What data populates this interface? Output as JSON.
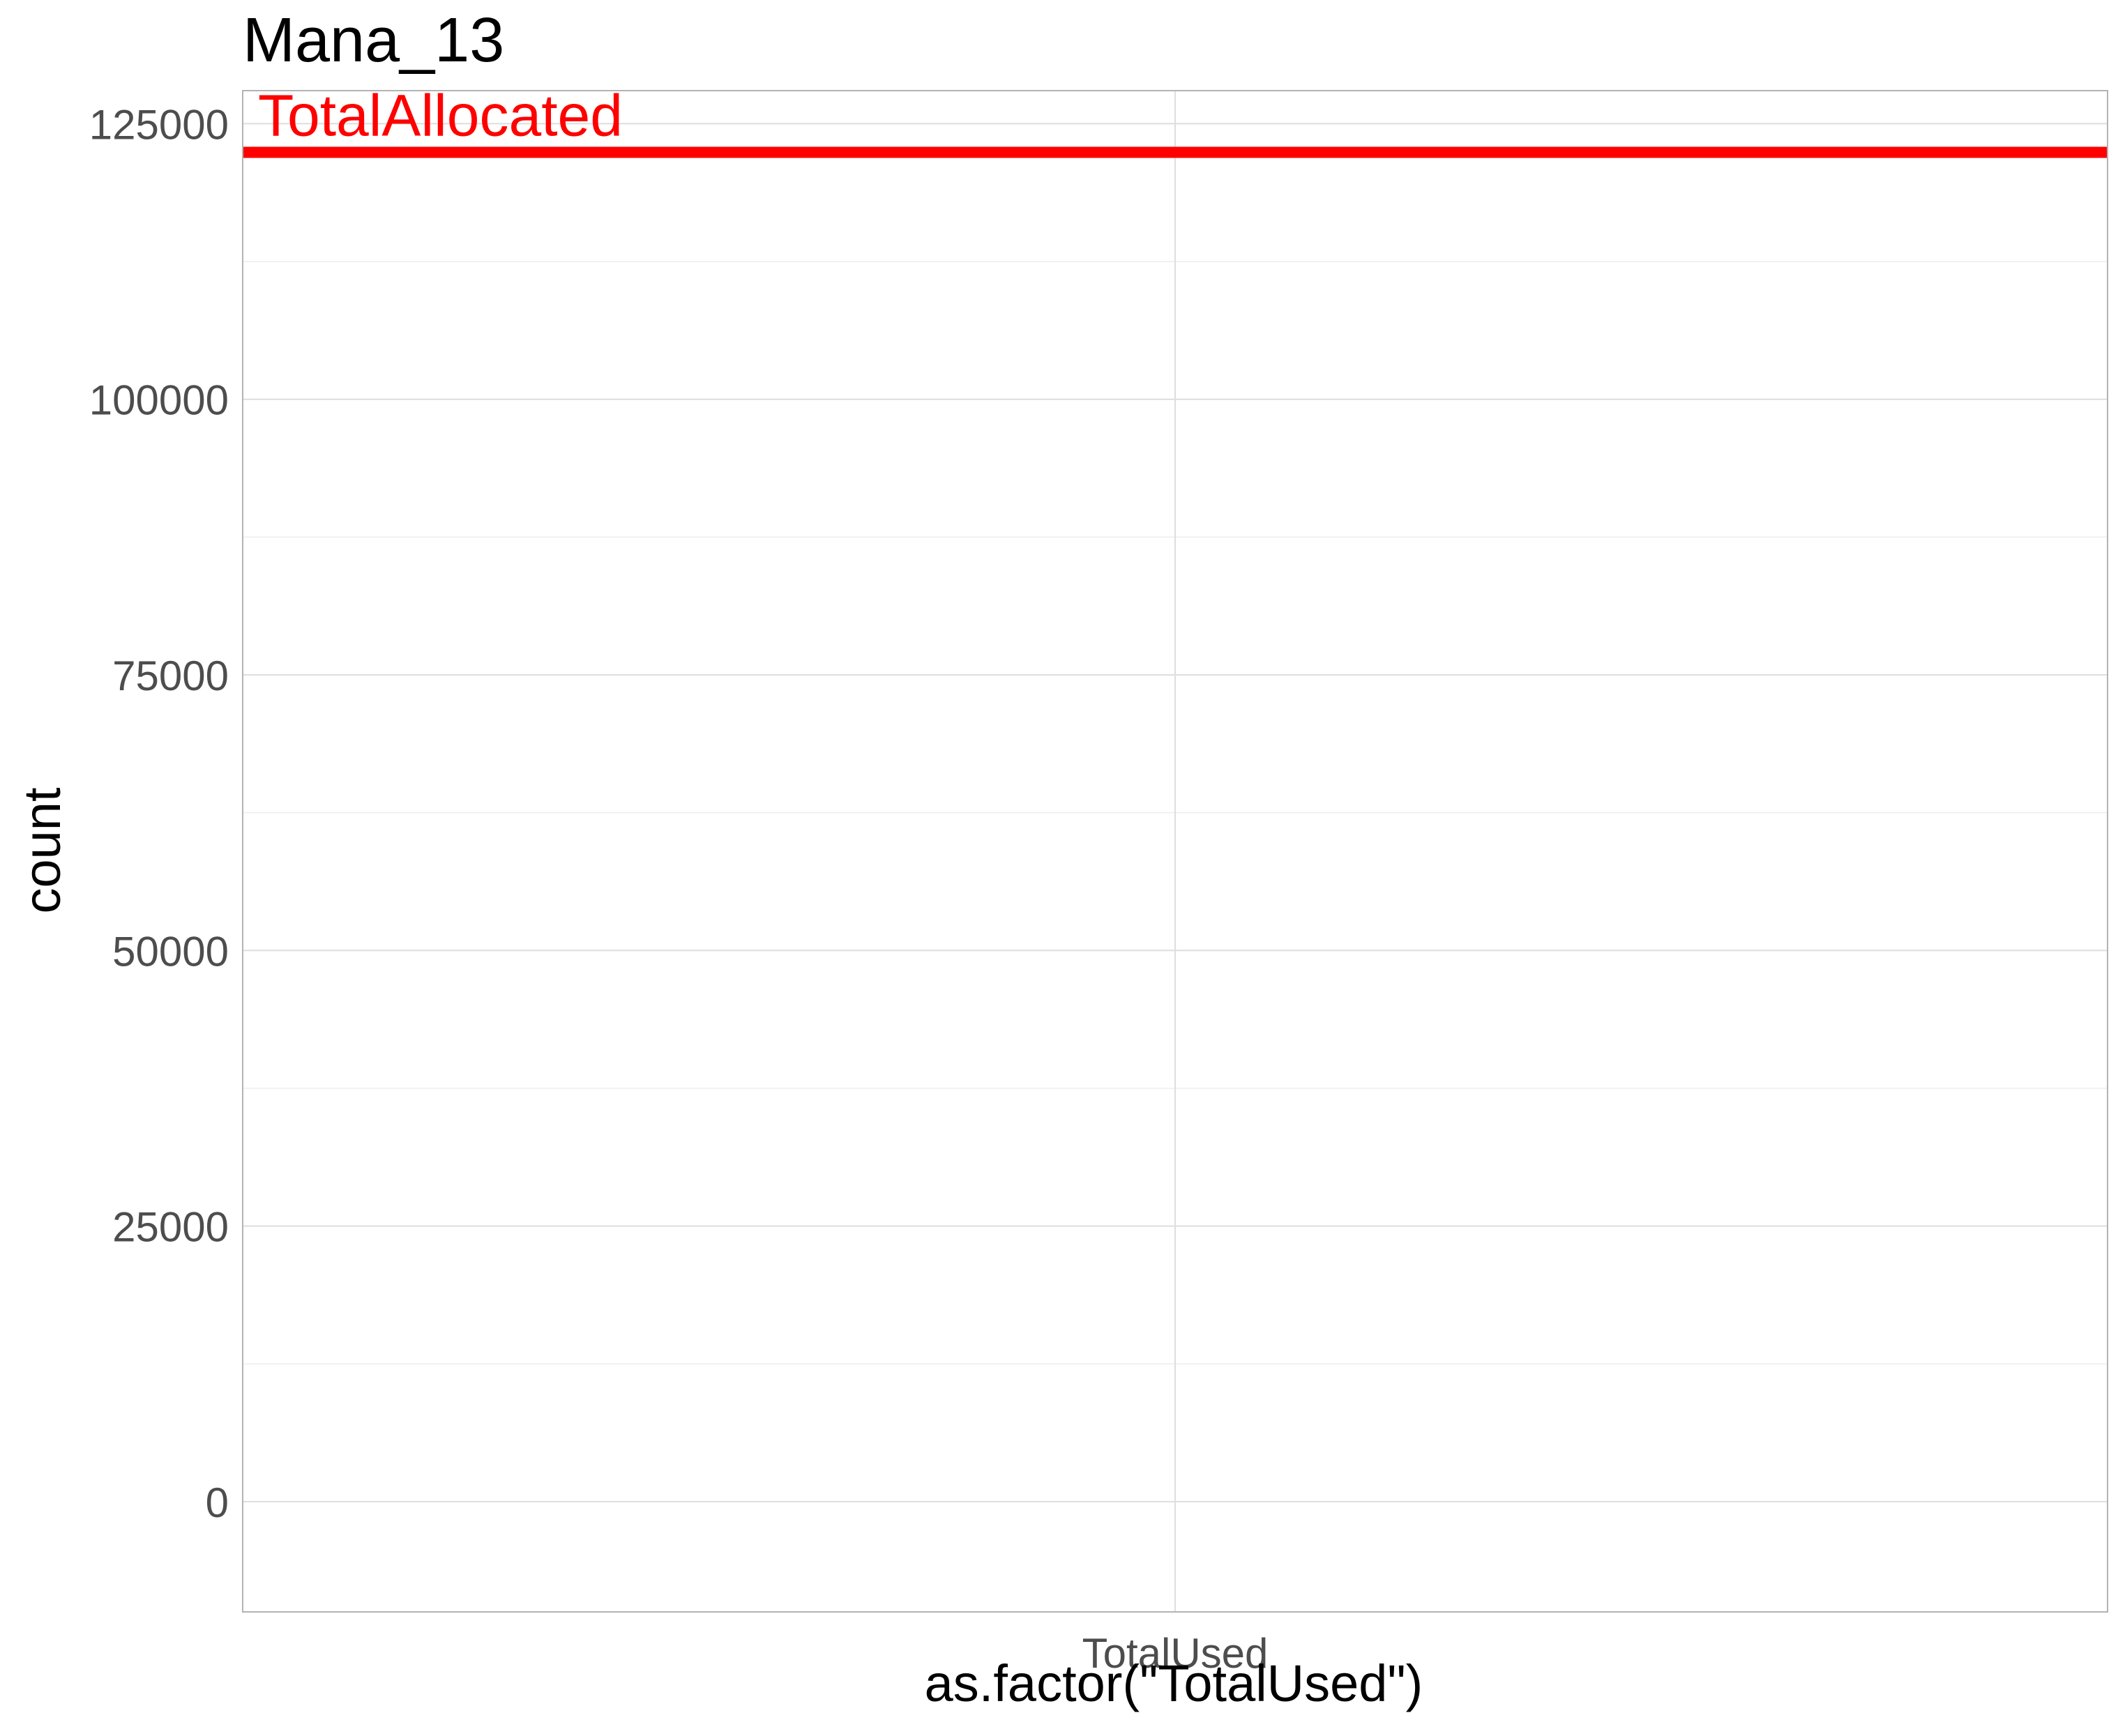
{
  "chart_data": {
    "type": "bar",
    "title": "Mana_13",
    "xlabel": "as.factor(\"TotalUsed\")",
    "ylabel": "count",
    "categories": [
      "TotalUsed"
    ],
    "values": [
      0
    ],
    "ylim": [
      -10000,
      128000
    ],
    "y_ticks": [
      0,
      25000,
      50000,
      75000,
      100000,
      125000
    ],
    "y_tick_labels": [
      "0",
      "25000",
      "50000",
      "75000",
      "100000",
      "125000"
    ],
    "grid": true,
    "reference_line": {
      "label": "TotalAllocated",
      "value": 122400,
      "color": "#ff0000"
    },
    "colors": {
      "grid_major": "#dedede",
      "grid_minor": "#ededed",
      "panel_border": "#b3b3b3",
      "tick_label": "#4d4d4d",
      "text": "#000000"
    }
  }
}
